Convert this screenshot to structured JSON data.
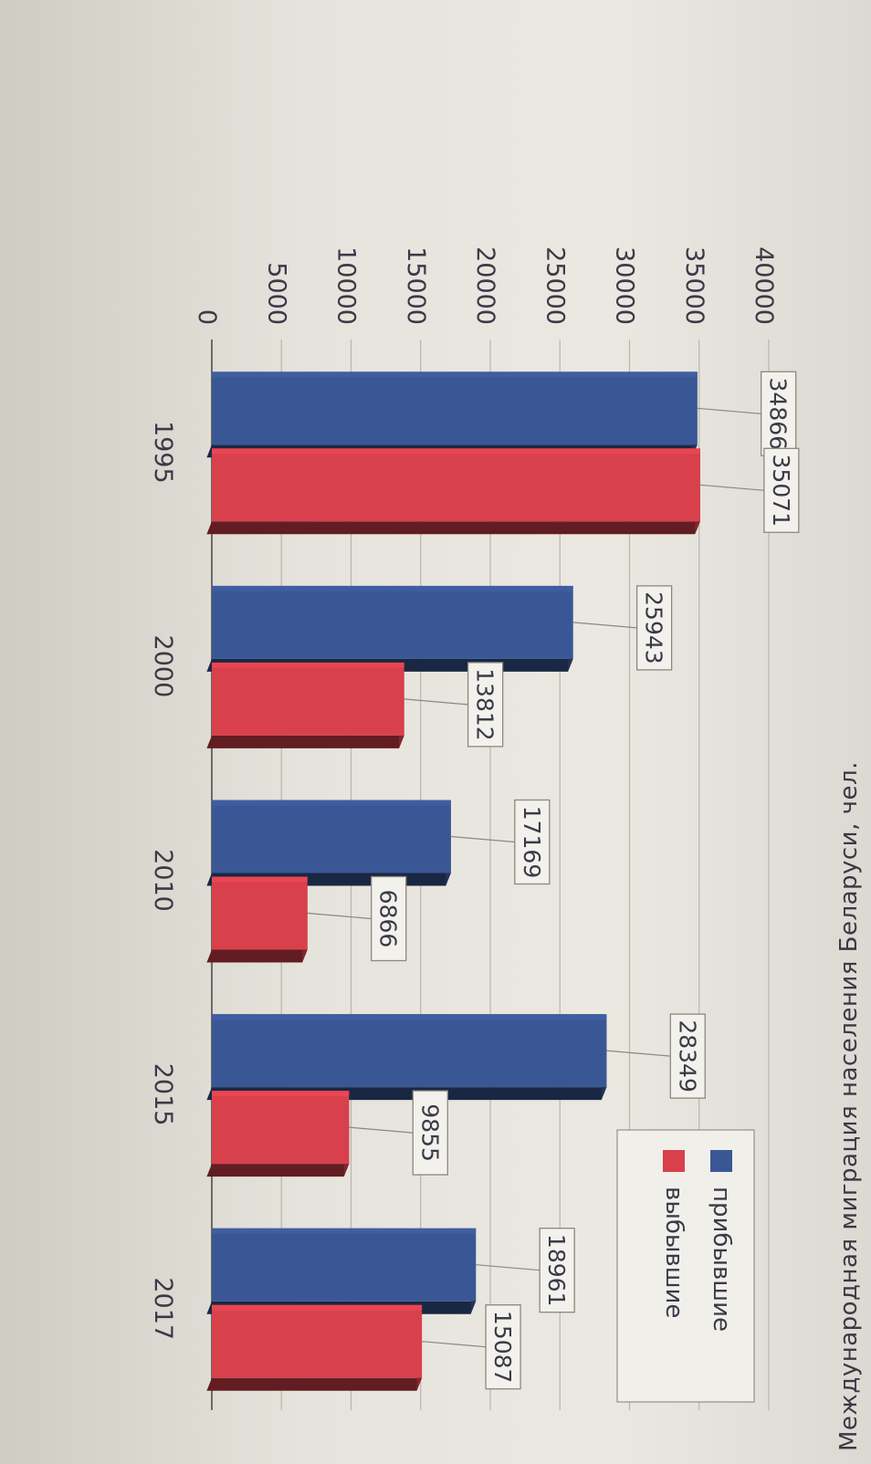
{
  "chart_data": {
    "type": "bar",
    "categories": [
      "1995",
      "2000",
      "2010",
      "2015",
      "2017"
    ],
    "series": [
      {
        "name": "прибывшие",
        "values": [
          34866,
          25943,
          17169,
          28349,
          18961
        ],
        "color": "#3a5795"
      },
      {
        "name": "выбывшие",
        "values": [
          35071,
          13812,
          6866,
          9855,
          15087
        ],
        "color": "#d8404c"
      }
    ],
    "y_ticks": [
      "0",
      "5000",
      "10000",
      "15000",
      "20000",
      "25000",
      "30000",
      "35000",
      "40000"
    ],
    "ylim": [
      0,
      40000
    ],
    "legend_position": "right",
    "grid": true,
    "data_labels": true
  },
  "caption": "Международная миграция населения Беларуси, чел."
}
